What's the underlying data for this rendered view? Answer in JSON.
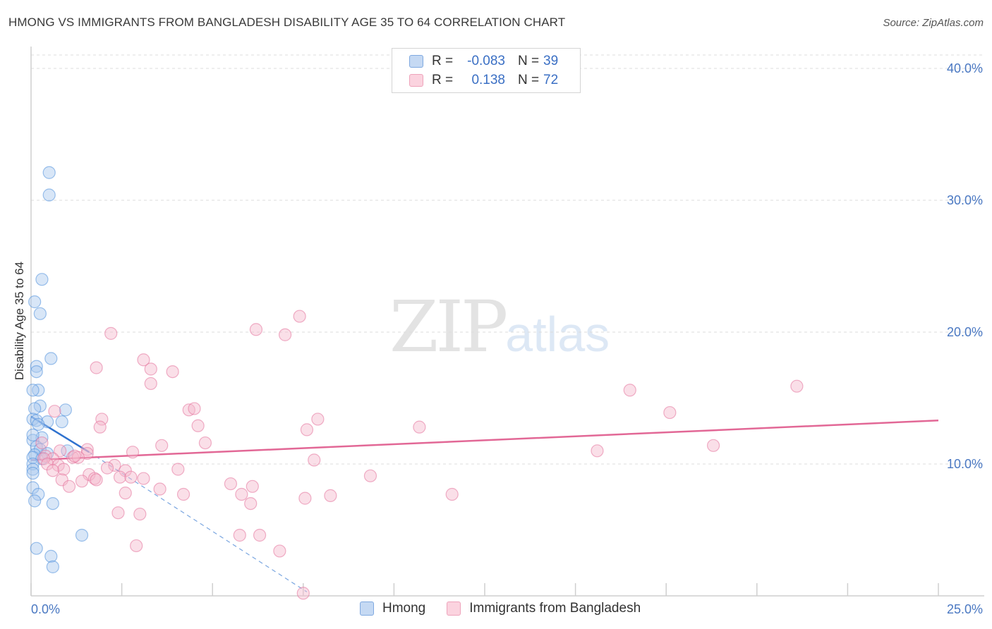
{
  "title": "HMONG VS IMMIGRANTS FROM BANGLADESH DISABILITY AGE 35 TO 64 CORRELATION CHART",
  "source": "Source: ZipAtlas.com",
  "watermark": {
    "zip": "ZIP",
    "atlas": "atlas"
  },
  "legend": {
    "r_label": "R =",
    "n_label": "N =",
    "rows": [
      {
        "r": "-0.083",
        "n": "39",
        "color": "#a9c7ee"
      },
      {
        "r": "0.138",
        "n": "72",
        "color": "#f5b8cb"
      }
    ]
  },
  "bottom_legend": [
    {
      "label": "Hmong",
      "color": "#a9c7ee"
    },
    {
      "label": "Immigrants from Bangladesh",
      "color": "#f5b8cb"
    }
  ],
  "chart_data": {
    "type": "scatter",
    "title": "HMONG VS IMMIGRANTS FROM BANGLADESH DISABILITY AGE 35 TO 64 CORRELATION CHART",
    "xlabel": "",
    "ylabel": "Disability Age 35 to 64",
    "xlim": [
      0,
      25
    ],
    "ylim": [
      0,
      40
    ],
    "x_tick_labels": [
      "0.0%",
      "25.0%"
    ],
    "y_ticks": [
      10,
      20,
      30,
      40
    ],
    "y_tick_labels": [
      "10.0%",
      "20.0%",
      "30.0%",
      "40.0%"
    ],
    "grid": true,
    "series": [
      {
        "name": "Hmong",
        "color": "#4f8fdc",
        "fill": "#a9c7ee",
        "points": [
          [
            0.5,
            32.1
          ],
          [
            0.5,
            30.4
          ],
          [
            0.3,
            24.0
          ],
          [
            0.1,
            22.3
          ],
          [
            0.25,
            21.4
          ],
          [
            0.55,
            18.0
          ],
          [
            0.15,
            17.4
          ],
          [
            0.15,
            17.0
          ],
          [
            0.2,
            15.6
          ],
          [
            0.05,
            15.6
          ],
          [
            0.25,
            14.4
          ],
          [
            0.1,
            14.2
          ],
          [
            0.95,
            14.1
          ],
          [
            0.05,
            13.4
          ],
          [
            0.15,
            13.3
          ],
          [
            0.45,
            13.2
          ],
          [
            0.85,
            13.2
          ],
          [
            0.2,
            13.0
          ],
          [
            0.3,
            12.0
          ],
          [
            0.05,
            11.8
          ],
          [
            0.15,
            11.3
          ],
          [
            0.25,
            11.1
          ],
          [
            0.1,
            10.7
          ],
          [
            0.45,
            10.8
          ],
          [
            0.05,
            10.5
          ],
          [
            0.3,
            10.4
          ],
          [
            0.05,
            10.0
          ],
          [
            0.05,
            9.6
          ],
          [
            0.05,
            9.3
          ],
          [
            0.05,
            8.2
          ],
          [
            0.2,
            7.7
          ],
          [
            0.1,
            7.2
          ],
          [
            0.6,
            7.0
          ],
          [
            1.4,
            4.6
          ],
          [
            0.15,
            3.6
          ],
          [
            0.55,
            3.0
          ],
          [
            0.6,
            2.2
          ],
          [
            1.0,
            11.0
          ],
          [
            0.05,
            12.2
          ]
        ],
        "trend": {
          "x0": 0.0,
          "y0": 13.6,
          "x1": 1.6,
          "y1": 10.9,
          "dash_x1": 7.6,
          "dash_y1": 0.3
        }
      },
      {
        "name": "Immigrants from Bangladesh",
        "color": "#e4719a",
        "fill": "#f5b8cb",
        "points": [
          [
            7.4,
            21.2
          ],
          [
            6.2,
            20.2
          ],
          [
            7.0,
            19.8
          ],
          [
            2.2,
            19.9
          ],
          [
            3.1,
            17.9
          ],
          [
            3.3,
            17.2
          ],
          [
            1.8,
            17.3
          ],
          [
            3.9,
            17.0
          ],
          [
            3.3,
            16.1
          ],
          [
            16.5,
            15.6
          ],
          [
            21.1,
            15.9
          ],
          [
            0.65,
            14.0
          ],
          [
            4.35,
            14.1
          ],
          [
            4.5,
            14.2
          ],
          [
            1.95,
            13.4
          ],
          [
            7.9,
            13.4
          ],
          [
            17.6,
            13.9
          ],
          [
            4.6,
            12.9
          ],
          [
            1.9,
            12.8
          ],
          [
            7.6,
            12.6
          ],
          [
            10.7,
            12.8
          ],
          [
            4.8,
            11.6
          ],
          [
            3.6,
            11.4
          ],
          [
            1.55,
            11.1
          ],
          [
            1.55,
            10.8
          ],
          [
            2.8,
            10.9
          ],
          [
            15.6,
            11.0
          ],
          [
            18.8,
            11.4
          ],
          [
            0.8,
            11.0
          ],
          [
            0.3,
            11.6
          ],
          [
            0.4,
            10.6
          ],
          [
            1.15,
            10.5
          ],
          [
            1.3,
            10.5
          ],
          [
            7.8,
            10.3
          ],
          [
            0.6,
            10.4
          ],
          [
            0.35,
            10.4
          ],
          [
            0.45,
            10.0
          ],
          [
            0.75,
            9.9
          ],
          [
            2.3,
            9.9
          ],
          [
            0.9,
            9.6
          ],
          [
            2.1,
            9.7
          ],
          [
            2.6,
            9.5
          ],
          [
            4.05,
            9.6
          ],
          [
            0.6,
            9.5
          ],
          [
            1.6,
            9.2
          ],
          [
            2.45,
            9.0
          ],
          [
            2.75,
            9.0
          ],
          [
            1.75,
            8.9
          ],
          [
            3.1,
            8.9
          ],
          [
            9.35,
            9.1
          ],
          [
            0.85,
            8.8
          ],
          [
            1.4,
            8.7
          ],
          [
            1.8,
            8.8
          ],
          [
            5.5,
            8.5
          ],
          [
            6.1,
            8.3
          ],
          [
            1.05,
            8.3
          ],
          [
            3.55,
            8.1
          ],
          [
            2.6,
            7.8
          ],
          [
            4.2,
            7.7
          ],
          [
            5.8,
            7.7
          ],
          [
            8.25,
            7.6
          ],
          [
            11.6,
            7.7
          ],
          [
            7.55,
            7.4
          ],
          [
            6.05,
            7.0
          ],
          [
            2.4,
            6.3
          ],
          [
            3.0,
            6.2
          ],
          [
            5.75,
            4.6
          ],
          [
            6.3,
            4.6
          ],
          [
            2.9,
            3.8
          ],
          [
            6.85,
            3.4
          ],
          [
            7.5,
            0.2
          ],
          [
            1.2,
            10.6
          ]
        ],
        "trend": {
          "x0": 0.0,
          "y0": 10.3,
          "x1": 25.0,
          "y1": 13.3
        }
      }
    ]
  }
}
